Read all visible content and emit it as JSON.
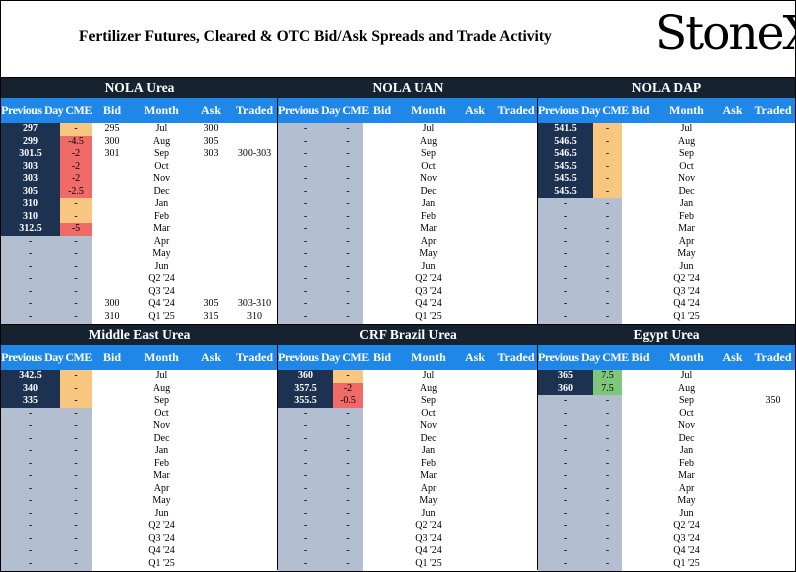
{
  "title": "Fertilizer Futures, Cleared & OTC Bid/Ask Spreads and Trade Activity",
  "logo": {
    "text": "StoneX",
    "mark": "®"
  },
  "columns": [
    "Previous Day",
    "CME",
    "Bid",
    "Month",
    "Ask",
    "Traded"
  ],
  "colors": {
    "panel_title_bg": "#172230",
    "header_bg": "#1f87e8",
    "prev_bg": "#1d3150",
    "empty_bg": "#b3bfd1",
    "orange": "#f8c67e",
    "red": "#f06b68",
    "green": "#7dc67b"
  },
  "panels": [
    {
      "name": "NOLA Urea",
      "rows": [
        {
          "prev": "297",
          "chg": "-",
          "chg_color": "orange",
          "bid": "295",
          "month": "Jul",
          "ask": "300",
          "traded": ""
        },
        {
          "prev": "299",
          "chg": "-4.5",
          "chg_color": "red",
          "bid": "300",
          "month": "Aug",
          "ask": "305",
          "traded": ""
        },
        {
          "prev": "301.5",
          "chg": "-2",
          "chg_color": "red",
          "bid": "301",
          "month": "Sep",
          "ask": "303",
          "traded": "300-303"
        },
        {
          "prev": "303",
          "chg": "-2",
          "chg_color": "red",
          "bid": "",
          "month": "Oct",
          "ask": "",
          "traded": ""
        },
        {
          "prev": "303",
          "chg": "-2",
          "chg_color": "red",
          "bid": "",
          "month": "Nov",
          "ask": "",
          "traded": ""
        },
        {
          "prev": "305",
          "chg": "-2.5",
          "chg_color": "red",
          "bid": "",
          "month": "Dec",
          "ask": "",
          "traded": ""
        },
        {
          "prev": "310",
          "chg": "-",
          "chg_color": "orange",
          "bid": "",
          "month": "Jan",
          "ask": "",
          "traded": ""
        },
        {
          "prev": "310",
          "chg": "-",
          "chg_color": "orange",
          "bid": "",
          "month": "Feb",
          "ask": "",
          "traded": ""
        },
        {
          "prev": "312.5",
          "chg": "-5",
          "chg_color": "red",
          "bid": "",
          "month": "Mar",
          "ask": "",
          "traded": ""
        },
        {
          "prev": "-",
          "chg": "-",
          "chg_color": "",
          "bid": "",
          "month": "Apr",
          "ask": "",
          "traded": ""
        },
        {
          "prev": "-",
          "chg": "-",
          "chg_color": "",
          "bid": "",
          "month": "May",
          "ask": "",
          "traded": ""
        },
        {
          "prev": "-",
          "chg": "-",
          "chg_color": "",
          "bid": "",
          "month": "Jun",
          "ask": "",
          "traded": ""
        },
        {
          "prev": "-",
          "chg": "-",
          "chg_color": "",
          "bid": "",
          "month": "Q2 '24",
          "ask": "",
          "traded": ""
        },
        {
          "prev": "-",
          "chg": "-",
          "chg_color": "",
          "bid": "",
          "month": "Q3 '24",
          "ask": "",
          "traded": ""
        },
        {
          "prev": "-",
          "chg": "-",
          "chg_color": "",
          "bid": "300",
          "month": "Q4 '24",
          "ask": "305",
          "traded": "303-310"
        },
        {
          "prev": "-",
          "chg": "-",
          "chg_color": "",
          "bid": "310",
          "month": "Q1 '25",
          "ask": "315",
          "traded": "310"
        }
      ]
    },
    {
      "name": "NOLA UAN",
      "rows": [
        {
          "prev": "-",
          "chg": "-",
          "chg_color": "",
          "bid": "",
          "month": "Jul",
          "ask": "",
          "traded": ""
        },
        {
          "prev": "-",
          "chg": "-",
          "chg_color": "",
          "bid": "",
          "month": "Aug",
          "ask": "",
          "traded": ""
        },
        {
          "prev": "-",
          "chg": "-",
          "chg_color": "",
          "bid": "",
          "month": "Sep",
          "ask": "",
          "traded": ""
        },
        {
          "prev": "-",
          "chg": "-",
          "chg_color": "",
          "bid": "",
          "month": "Oct",
          "ask": "",
          "traded": ""
        },
        {
          "prev": "-",
          "chg": "-",
          "chg_color": "",
          "bid": "",
          "month": "Nov",
          "ask": "",
          "traded": ""
        },
        {
          "prev": "-",
          "chg": "-",
          "chg_color": "",
          "bid": "",
          "month": "Dec",
          "ask": "",
          "traded": ""
        },
        {
          "prev": "-",
          "chg": "-",
          "chg_color": "",
          "bid": "",
          "month": "Jan",
          "ask": "",
          "traded": ""
        },
        {
          "prev": "-",
          "chg": "-",
          "chg_color": "",
          "bid": "",
          "month": "Feb",
          "ask": "",
          "traded": ""
        },
        {
          "prev": "-",
          "chg": "-",
          "chg_color": "",
          "bid": "",
          "month": "Mar",
          "ask": "",
          "traded": ""
        },
        {
          "prev": "-",
          "chg": "-",
          "chg_color": "",
          "bid": "",
          "month": "Apr",
          "ask": "",
          "traded": ""
        },
        {
          "prev": "-",
          "chg": "-",
          "chg_color": "",
          "bid": "",
          "month": "May",
          "ask": "",
          "traded": ""
        },
        {
          "prev": "-",
          "chg": "-",
          "chg_color": "",
          "bid": "",
          "month": "Jun",
          "ask": "",
          "traded": ""
        },
        {
          "prev": "-",
          "chg": "-",
          "chg_color": "",
          "bid": "",
          "month": "Q2 '24",
          "ask": "",
          "traded": ""
        },
        {
          "prev": "-",
          "chg": "-",
          "chg_color": "",
          "bid": "",
          "month": "Q3 '24",
          "ask": "",
          "traded": ""
        },
        {
          "prev": "-",
          "chg": "-",
          "chg_color": "",
          "bid": "",
          "month": "Q4 '24",
          "ask": "",
          "traded": ""
        },
        {
          "prev": "-",
          "chg": "-",
          "chg_color": "",
          "bid": "",
          "month": "Q1 '25",
          "ask": "",
          "traded": ""
        }
      ]
    },
    {
      "name": "NOLA DAP",
      "rows": [
        {
          "prev": "541.5",
          "chg": "-",
          "chg_color": "orange",
          "bid": "",
          "month": "Jul",
          "ask": "",
          "traded": ""
        },
        {
          "prev": "546.5",
          "chg": "-",
          "chg_color": "orange",
          "bid": "",
          "month": "Aug",
          "ask": "",
          "traded": ""
        },
        {
          "prev": "546.5",
          "chg": "-",
          "chg_color": "orange",
          "bid": "",
          "month": "Sep",
          "ask": "",
          "traded": ""
        },
        {
          "prev": "545.5",
          "chg": "-",
          "chg_color": "orange",
          "bid": "",
          "month": "Oct",
          "ask": "",
          "traded": ""
        },
        {
          "prev": "545.5",
          "chg": "-",
          "chg_color": "orange",
          "bid": "",
          "month": "Nov",
          "ask": "",
          "traded": ""
        },
        {
          "prev": "545.5",
          "chg": "-",
          "chg_color": "orange",
          "bid": "",
          "month": "Dec",
          "ask": "",
          "traded": ""
        },
        {
          "prev": "-",
          "chg": "-",
          "chg_color": "",
          "bid": "",
          "month": "Jan",
          "ask": "",
          "traded": ""
        },
        {
          "prev": "-",
          "chg": "-",
          "chg_color": "",
          "bid": "",
          "month": "Feb",
          "ask": "",
          "traded": ""
        },
        {
          "prev": "-",
          "chg": "-",
          "chg_color": "",
          "bid": "",
          "month": "Mar",
          "ask": "",
          "traded": ""
        },
        {
          "prev": "-",
          "chg": "-",
          "chg_color": "",
          "bid": "",
          "month": "Apr",
          "ask": "",
          "traded": ""
        },
        {
          "prev": "-",
          "chg": "-",
          "chg_color": "",
          "bid": "",
          "month": "May",
          "ask": "",
          "traded": ""
        },
        {
          "prev": "-",
          "chg": "-",
          "chg_color": "",
          "bid": "",
          "month": "Jun",
          "ask": "",
          "traded": ""
        },
        {
          "prev": "-",
          "chg": "-",
          "chg_color": "",
          "bid": "",
          "month": "Q2 '24",
          "ask": "",
          "traded": ""
        },
        {
          "prev": "-",
          "chg": "-",
          "chg_color": "",
          "bid": "",
          "month": "Q3 '24",
          "ask": "",
          "traded": ""
        },
        {
          "prev": "-",
          "chg": "-",
          "chg_color": "",
          "bid": "",
          "month": "Q4 '24",
          "ask": "",
          "traded": ""
        },
        {
          "prev": "-",
          "chg": "-",
          "chg_color": "",
          "bid": "",
          "month": "Q1 '25",
          "ask": "",
          "traded": ""
        }
      ]
    },
    {
      "name": "Middle East Urea",
      "rows": [
        {
          "prev": "342.5",
          "chg": "-",
          "chg_color": "orange",
          "bid": "",
          "month": "Jul",
          "ask": "",
          "traded": ""
        },
        {
          "prev": "340",
          "chg": "-",
          "chg_color": "orange",
          "bid": "",
          "month": "Aug",
          "ask": "",
          "traded": ""
        },
        {
          "prev": "335",
          "chg": "-",
          "chg_color": "orange",
          "bid": "",
          "month": "Sep",
          "ask": "",
          "traded": ""
        },
        {
          "prev": "-",
          "chg": "-",
          "chg_color": "",
          "bid": "",
          "month": "Oct",
          "ask": "",
          "traded": ""
        },
        {
          "prev": "-",
          "chg": "-",
          "chg_color": "",
          "bid": "",
          "month": "Nov",
          "ask": "",
          "traded": ""
        },
        {
          "prev": "-",
          "chg": "-",
          "chg_color": "",
          "bid": "",
          "month": "Dec",
          "ask": "",
          "traded": ""
        },
        {
          "prev": "-",
          "chg": "-",
          "chg_color": "",
          "bid": "",
          "month": "Jan",
          "ask": "",
          "traded": ""
        },
        {
          "prev": "-",
          "chg": "-",
          "chg_color": "",
          "bid": "",
          "month": "Feb",
          "ask": "",
          "traded": ""
        },
        {
          "prev": "-",
          "chg": "-",
          "chg_color": "",
          "bid": "",
          "month": "Mar",
          "ask": "",
          "traded": ""
        },
        {
          "prev": "-",
          "chg": "-",
          "chg_color": "",
          "bid": "",
          "month": "Apr",
          "ask": "",
          "traded": ""
        },
        {
          "prev": "-",
          "chg": "-",
          "chg_color": "",
          "bid": "",
          "month": "May",
          "ask": "",
          "traded": ""
        },
        {
          "prev": "-",
          "chg": "-",
          "chg_color": "",
          "bid": "",
          "month": "Jun",
          "ask": "",
          "traded": ""
        },
        {
          "prev": "-",
          "chg": "-",
          "chg_color": "",
          "bid": "",
          "month": "Q2 '24",
          "ask": "",
          "traded": ""
        },
        {
          "prev": "-",
          "chg": "-",
          "chg_color": "",
          "bid": "",
          "month": "Q3 '24",
          "ask": "",
          "traded": ""
        },
        {
          "prev": "-",
          "chg": "-",
          "chg_color": "",
          "bid": "",
          "month": "Q4 '24",
          "ask": "",
          "traded": ""
        },
        {
          "prev": "-",
          "chg": "-",
          "chg_color": "",
          "bid": "",
          "month": "Q1 '25",
          "ask": "",
          "traded": ""
        }
      ]
    },
    {
      "name": "CRF Brazil Urea",
      "rows": [
        {
          "prev": "360",
          "chg": "-",
          "chg_color": "orange",
          "bid": "",
          "month": "Jul",
          "ask": "",
          "traded": ""
        },
        {
          "prev": "357.5",
          "chg": "-2",
          "chg_color": "red",
          "bid": "",
          "month": "Aug",
          "ask": "",
          "traded": ""
        },
        {
          "prev": "355.5",
          "chg": "-0.5",
          "chg_color": "red",
          "bid": "",
          "month": "Sep",
          "ask": "",
          "traded": ""
        },
        {
          "prev": "-",
          "chg": "-",
          "chg_color": "",
          "bid": "",
          "month": "Oct",
          "ask": "",
          "traded": ""
        },
        {
          "prev": "-",
          "chg": "-",
          "chg_color": "",
          "bid": "",
          "month": "Nov",
          "ask": "",
          "traded": ""
        },
        {
          "prev": "-",
          "chg": "-",
          "chg_color": "",
          "bid": "",
          "month": "Dec",
          "ask": "",
          "traded": ""
        },
        {
          "prev": "-",
          "chg": "-",
          "chg_color": "",
          "bid": "",
          "month": "Jan",
          "ask": "",
          "traded": ""
        },
        {
          "prev": "-",
          "chg": "-",
          "chg_color": "",
          "bid": "",
          "month": "Feb",
          "ask": "",
          "traded": ""
        },
        {
          "prev": "-",
          "chg": "-",
          "chg_color": "",
          "bid": "",
          "month": "Mar",
          "ask": "",
          "traded": ""
        },
        {
          "prev": "-",
          "chg": "-",
          "chg_color": "",
          "bid": "",
          "month": "Apr",
          "ask": "",
          "traded": ""
        },
        {
          "prev": "-",
          "chg": "-",
          "chg_color": "",
          "bid": "",
          "month": "May",
          "ask": "",
          "traded": ""
        },
        {
          "prev": "-",
          "chg": "-",
          "chg_color": "",
          "bid": "",
          "month": "Jun",
          "ask": "",
          "traded": ""
        },
        {
          "prev": "-",
          "chg": "-",
          "chg_color": "",
          "bid": "",
          "month": "Q2 '24",
          "ask": "",
          "traded": ""
        },
        {
          "prev": "-",
          "chg": "-",
          "chg_color": "",
          "bid": "",
          "month": "Q3 '24",
          "ask": "",
          "traded": ""
        },
        {
          "prev": "-",
          "chg": "-",
          "chg_color": "",
          "bid": "",
          "month": "Q4 '24",
          "ask": "",
          "traded": ""
        },
        {
          "prev": "-",
          "chg": "-",
          "chg_color": "",
          "bid": "",
          "month": "Q1 '25",
          "ask": "",
          "traded": ""
        }
      ]
    },
    {
      "name": "Egypt Urea",
      "rows": [
        {
          "prev": "365",
          "chg": "7.5",
          "chg_color": "green",
          "bid": "",
          "month": "Jul",
          "ask": "",
          "traded": ""
        },
        {
          "prev": "360",
          "chg": "7.5",
          "chg_color": "green",
          "bid": "",
          "month": "Aug",
          "ask": "",
          "traded": ""
        },
        {
          "prev": "-",
          "chg": "-",
          "chg_color": "",
          "bid": "",
          "month": "Sep",
          "ask": "",
          "traded": "350"
        },
        {
          "prev": "-",
          "chg": "-",
          "chg_color": "",
          "bid": "",
          "month": "Oct",
          "ask": "",
          "traded": ""
        },
        {
          "prev": "-",
          "chg": "-",
          "chg_color": "",
          "bid": "",
          "month": "Nov",
          "ask": "",
          "traded": ""
        },
        {
          "prev": "-",
          "chg": "-",
          "chg_color": "",
          "bid": "",
          "month": "Dec",
          "ask": "",
          "traded": ""
        },
        {
          "prev": "-",
          "chg": "-",
          "chg_color": "",
          "bid": "",
          "month": "Jan",
          "ask": "",
          "traded": ""
        },
        {
          "prev": "-",
          "chg": "-",
          "chg_color": "",
          "bid": "",
          "month": "Feb",
          "ask": "",
          "traded": ""
        },
        {
          "prev": "-",
          "chg": "-",
          "chg_color": "",
          "bid": "",
          "month": "Mar",
          "ask": "",
          "traded": ""
        },
        {
          "prev": "-",
          "chg": "-",
          "chg_color": "",
          "bid": "",
          "month": "Apr",
          "ask": "",
          "traded": ""
        },
        {
          "prev": "-",
          "chg": "-",
          "chg_color": "",
          "bid": "",
          "month": "May",
          "ask": "",
          "traded": ""
        },
        {
          "prev": "-",
          "chg": "-",
          "chg_color": "",
          "bid": "",
          "month": "Jun",
          "ask": "",
          "traded": ""
        },
        {
          "prev": "-",
          "chg": "-",
          "chg_color": "",
          "bid": "",
          "month": "Q2 '24",
          "ask": "",
          "traded": ""
        },
        {
          "prev": "-",
          "chg": "-",
          "chg_color": "",
          "bid": "",
          "month": "Q3 '24",
          "ask": "",
          "traded": ""
        },
        {
          "prev": "-",
          "chg": "-",
          "chg_color": "",
          "bid": "",
          "month": "Q4 '24",
          "ask": "",
          "traded": ""
        },
        {
          "prev": "-",
          "chg": "-",
          "chg_color": "",
          "bid": "",
          "month": "Q1 '25",
          "ask": "",
          "traded": ""
        }
      ]
    }
  ]
}
